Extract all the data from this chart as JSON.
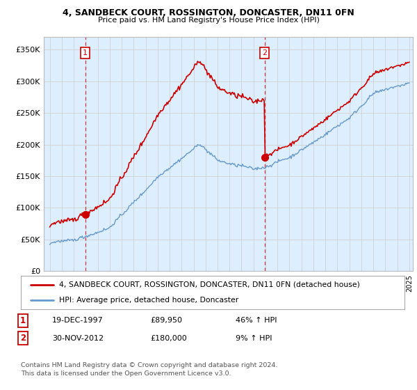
{
  "title": "4, SANDBECK COURT, ROSSINGTON, DONCASTER, DN11 0FN",
  "subtitle": "Price paid vs. HM Land Registry's House Price Index (HPI)",
  "ylabel_ticks": [
    "£0",
    "£50K",
    "£100K",
    "£150K",
    "£200K",
    "£250K",
    "£300K",
    "£350K"
  ],
  "ytick_values": [
    0,
    50000,
    100000,
    150000,
    200000,
    250000,
    300000,
    350000
  ],
  "ylim": [
    0,
    370000
  ],
  "xlim_start": 1994.5,
  "xlim_end": 2025.3,
  "sale1": {
    "date": 1997.96,
    "price": 89950,
    "label": "1"
  },
  "sale2": {
    "date": 2012.92,
    "price": 180000,
    "label": "2"
  },
  "red_line_color": "#cc0000",
  "blue_line_color": "#6699cc",
  "dashed_line_color": "#cc0000",
  "chart_bg_color": "#ddeeff",
  "legend_entry1": "4, SANDBECK COURT, ROSSINGTON, DONCASTER, DN11 0FN (detached house)",
  "legend_entry2": "HPI: Average price, detached house, Doncaster",
  "table_row1": [
    "1",
    "19-DEC-1997",
    "£89,950",
    "46% ↑ HPI"
  ],
  "table_row2": [
    "2",
    "30-NOV-2012",
    "£180,000",
    "9% ↑ HPI"
  ],
  "footer": "Contains HM Land Registry data © Crown copyright and database right 2024.\nThis data is licensed under the Open Government Licence v3.0.",
  "background_color": "#ffffff",
  "grid_color": "#cccccc"
}
